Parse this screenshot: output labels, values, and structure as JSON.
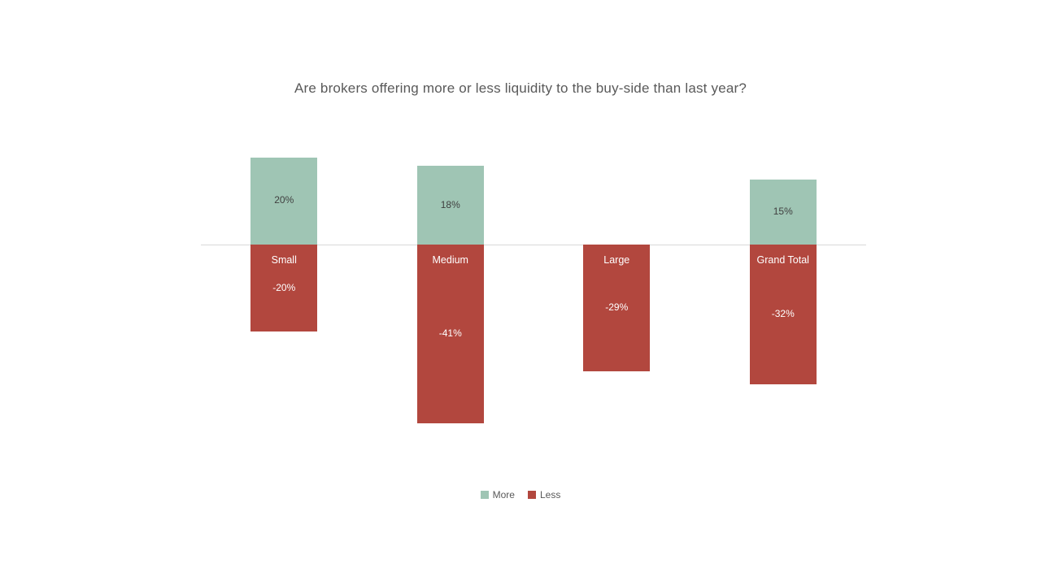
{
  "title": "Are brokers offering more or less liquidity to the buy-side than last year?",
  "colors": {
    "more": "#9fc5b4",
    "less": "#b2473e",
    "axis_line": "#d9d9d9",
    "title_text": "#595959",
    "positive_label_text": "#404040",
    "negative_label_text": "#ffffff"
  },
  "legend": {
    "items": [
      {
        "label": "More",
        "color": "#9fc5b4"
      },
      {
        "label": "Less",
        "color": "#b2473e"
      }
    ],
    "position": "bottom-center"
  },
  "chart_data": {
    "type": "bar",
    "title": "Are brokers offering more or less liquidity to the buy-side than last year?",
    "categories": [
      "Small",
      "Medium",
      "Large",
      "Grand Total"
    ],
    "series": [
      {
        "name": "More",
        "color": "#9fc5b4",
        "values": [
          20,
          18,
          null,
          15
        ],
        "labels": [
          "20%",
          "18%",
          null,
          "15%"
        ]
      },
      {
        "name": "Less",
        "color": "#b2473e",
        "values": [
          -20,
          -41,
          -29,
          -32
        ],
        "labels": [
          "-20%",
          "-41%",
          "-29%",
          "-32%"
        ]
      }
    ],
    "xlabel": "",
    "ylabel": "",
    "ylim": [
      -45,
      22
    ],
    "grid": false,
    "zero_baseline_shown": true,
    "legend_position": "bottom"
  }
}
